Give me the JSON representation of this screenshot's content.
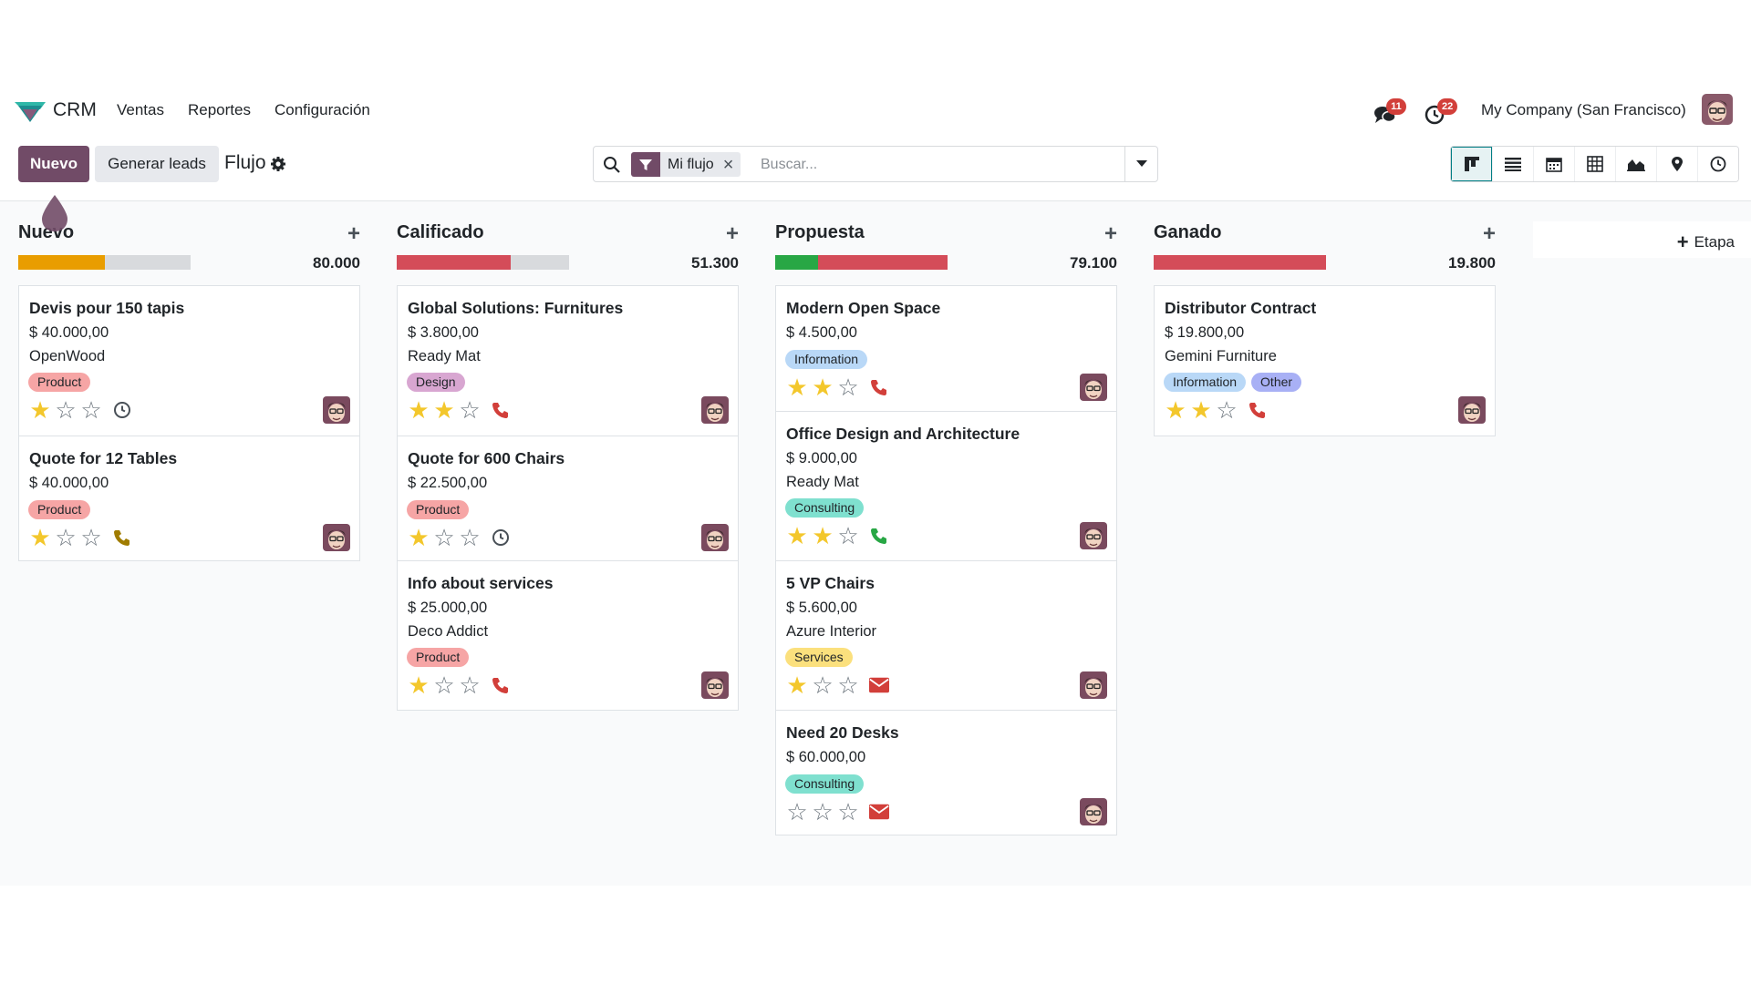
{
  "app": {
    "name": "CRM"
  },
  "menu": [
    "Ventas",
    "Reportes",
    "Configuración"
  ],
  "notifications": {
    "messages_count": "11",
    "activities_count": "22"
  },
  "company": "My Company (San Francisco)",
  "control_panel": {
    "new_label": "Nuevo",
    "generate_label": "Generar leads",
    "breadcrumb": "Flujo"
  },
  "search": {
    "facet": "Mi flujo",
    "facet_remove": "×",
    "placeholder": "Buscar..."
  },
  "views": [
    "kanban-icon",
    "list-icon",
    "calendar-icon",
    "pivot-icon",
    "graph-icon",
    "map-icon",
    "activity-icon"
  ],
  "add_stage_label": "Etapa",
  "colors": {
    "primary": "#714b67",
    "progress_yellow": "#e99d00",
    "progress_red": "#d44c59",
    "progress_green": "#28a745",
    "progress_empty": "#d8dadd",
    "star_on": "#f3c72c",
    "phone_red": "#d23f3a",
    "phone_green": "#28a745",
    "phone_brown": "#a07c00"
  },
  "columns": [
    {
      "title": "Nuevo",
      "total": "80.000",
      "progress": [
        {
          "color": "#e99d00",
          "fraction": 0.5
        }
      ],
      "cards": [
        {
          "title": "Devis pour 150 tapis",
          "amount": "$ 40.000,00",
          "partner": "OpenWood",
          "tags": [
            {
              "label": "Product",
              "color": "#f6a5a5"
            }
          ],
          "stars": 1,
          "activity": "clock-icon"
        },
        {
          "title": "Quote for 12 Tables",
          "amount": "$ 40.000,00",
          "partner": "",
          "tags": [
            {
              "label": "Product",
              "color": "#f6a5a5"
            }
          ],
          "stars": 1,
          "activity": "phone-brown-icon"
        }
      ]
    },
    {
      "title": "Calificado",
      "total": "51.300",
      "progress": [
        {
          "color": "#d44c59",
          "fraction": 0.66
        }
      ],
      "cards": [
        {
          "title": "Global Solutions: Furnitures",
          "amount": "$ 3.800,00",
          "partner": "Ready Mat",
          "tags": [
            {
              "label": "Design",
              "color": "#d8a6d1"
            }
          ],
          "stars": 2,
          "activity": "phone-red-icon"
        },
        {
          "title": "Quote for 600 Chairs",
          "amount": "$ 22.500,00",
          "partner": "",
          "tags": [
            {
              "label": "Product",
              "color": "#f6a5a5"
            }
          ],
          "stars": 1,
          "activity": "clock-icon"
        },
        {
          "title": "Info about services",
          "amount": "$ 25.000,00",
          "partner": "Deco Addict",
          "tags": [
            {
              "label": "Product",
              "color": "#f6a5a5"
            }
          ],
          "stars": 1,
          "activity": "phone-red-icon"
        }
      ]
    },
    {
      "title": "Propuesta",
      "total": "79.100",
      "progress": [
        {
          "color": "#28a745",
          "fraction": 0.25
        },
        {
          "color": "#d44c59",
          "fraction": 0.75
        }
      ],
      "cards": [
        {
          "title": "Modern Open Space",
          "amount": "$ 4.500,00",
          "partner": "",
          "tags": [
            {
              "label": "Information",
              "color": "#b9d8f7"
            }
          ],
          "stars": 2,
          "activity": "phone-red-icon"
        },
        {
          "title": "Office Design and Architecture",
          "amount": "$ 9.000,00",
          "partner": "Ready Mat",
          "tags": [
            {
              "label": "Consulting",
              "color": "#7fe0cf"
            }
          ],
          "stars": 2,
          "activity": "phone-green-icon"
        },
        {
          "title": "5 VP Chairs",
          "amount": "$ 5.600,00",
          "partner": "Azure Interior",
          "tags": [
            {
              "label": "Services",
              "color": "#fbe07d"
            }
          ],
          "stars": 1,
          "activity": "envelope-icon"
        },
        {
          "title": "Need 20 Desks",
          "amount": "$ 60.000,00",
          "partner": "",
          "tags": [
            {
              "label": "Consulting",
              "color": "#7fe0cf"
            }
          ],
          "stars": 0,
          "activity": "envelope-icon"
        }
      ]
    },
    {
      "title": "Ganado",
      "total": "19.800",
      "progress": [
        {
          "color": "#d44c59",
          "fraction": 1.0
        }
      ],
      "cards": [
        {
          "title": "Distributor Contract",
          "amount": "$ 19.800,00",
          "partner": "Gemini Furniture",
          "tags": [
            {
              "label": "Information",
              "color": "#b9d8f7"
            },
            {
              "label": "Other",
              "color": "#a8b0f5"
            }
          ],
          "stars": 2,
          "activity": "phone-red-icon"
        }
      ]
    }
  ]
}
